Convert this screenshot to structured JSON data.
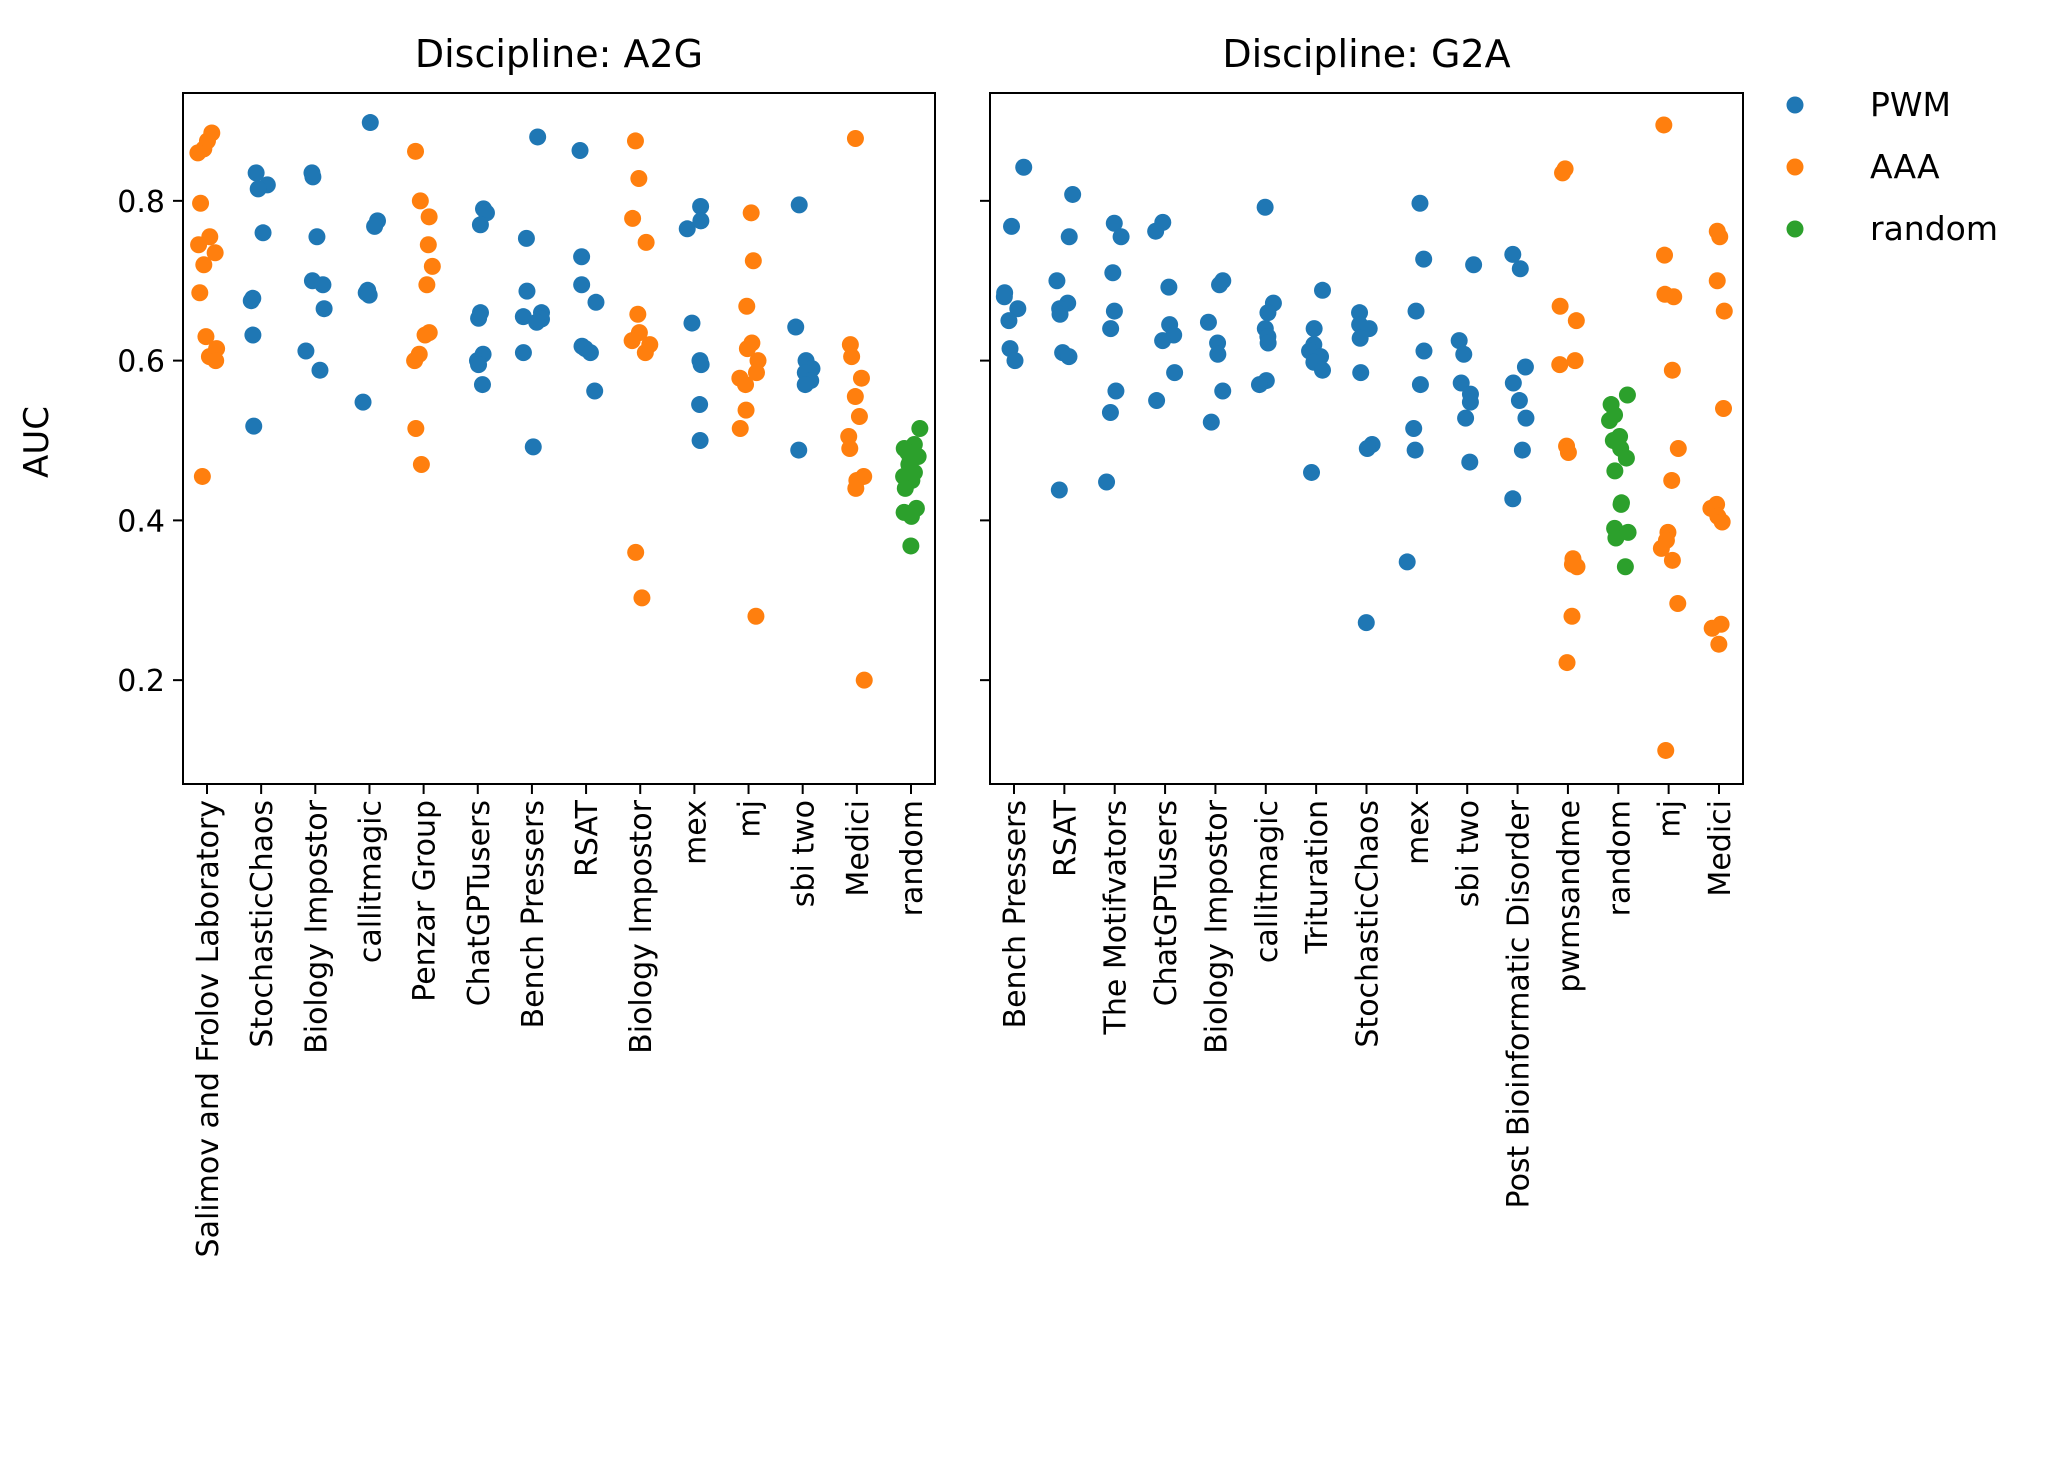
{
  "chart_data": {
    "type": "scatter",
    "ylabel": "AUC",
    "ylim": [
      0.07,
      0.935
    ],
    "yticks": [
      0.2,
      0.4,
      0.6,
      0.8
    ],
    "ytick_labels": [
      "0.2",
      "0.4",
      "0.6",
      "0.8"
    ],
    "legend": {
      "placement": "outside-top-right",
      "entries": [
        {
          "name": "PWM",
          "color": "#1f77b4"
        },
        {
          "name": "AAA",
          "color": "#ff7f0e"
        },
        {
          "name": "random",
          "color": "#2ca02c"
        }
      ]
    },
    "panels": [
      {
        "title": "Discipline: A2G",
        "categories": [
          {
            "label": "Salimov and Frolov Laboratory",
            "group": "AAA",
            "values": [
              0.885,
              0.875,
              0.865,
              0.86,
              0.797,
              0.755,
              0.745,
              0.735,
              0.72,
              0.685,
              0.63,
              0.615,
              0.605,
              0.6,
              0.455
            ]
          },
          {
            "label": "StochasticChaos",
            "group": "PWM",
            "values": [
              0.835,
              0.82,
              0.815,
              0.76,
              0.678,
              0.675,
              0.632,
              0.518
            ]
          },
          {
            "label": "Biology Impostor",
            "group": "PWM",
            "values": [
              0.835,
              0.83,
              0.755,
              0.7,
              0.695,
              0.665,
              0.612,
              0.588
            ]
          },
          {
            "label": "callitmagic",
            "group": "PWM",
            "values": [
              0.898,
              0.775,
              0.768,
              0.688,
              0.685,
              0.682,
              0.548
            ]
          },
          {
            "label": "Penzar Group",
            "group": "AAA",
            "values": [
              0.862,
              0.8,
              0.78,
              0.745,
              0.718,
              0.695,
              0.635,
              0.632,
              0.608,
              0.6,
              0.515,
              0.47
            ]
          },
          {
            "label": "ChatGPTusers",
            "group": "PWM",
            "values": [
              0.79,
              0.785,
              0.77,
              0.66,
              0.653,
              0.608,
              0.6,
              0.595,
              0.57
            ]
          },
          {
            "label": "Bench Pressers",
            "group": "PWM",
            "values": [
              0.88,
              0.753,
              0.687,
              0.66,
              0.655,
              0.652,
              0.648,
              0.61,
              0.492
            ]
          },
          {
            "label": "RSAT",
            "group": "PWM",
            "values": [
              0.863,
              0.73,
              0.695,
              0.673,
              0.618,
              0.615,
              0.61,
              0.562
            ]
          },
          {
            "label": "Biology Impostor",
            "group": "AAA",
            "values": [
              0.875,
              0.828,
              0.778,
              0.748,
              0.658,
              0.635,
              0.625,
              0.62,
              0.61,
              0.36,
              0.303
            ]
          },
          {
            "label": "mex",
            "group": "PWM",
            "values": [
              0.793,
              0.775,
              0.765,
              0.647,
              0.6,
              0.595,
              0.545,
              0.5
            ]
          },
          {
            "label": "mj",
            "group": "AAA",
            "values": [
              0.785,
              0.725,
              0.668,
              0.622,
              0.615,
              0.6,
              0.585,
              0.578,
              0.57,
              0.538,
              0.515,
              0.28
            ]
          },
          {
            "label": "sbi two",
            "group": "PWM",
            "values": [
              0.795,
              0.642,
              0.6,
              0.59,
              0.585,
              0.575,
              0.57,
              0.488
            ]
          },
          {
            "label": "Medici",
            "group": "AAA",
            "values": [
              0.878,
              0.62,
              0.605,
              0.578,
              0.555,
              0.53,
              0.505,
              0.49,
              0.455,
              0.45,
              0.44,
              0.2
            ]
          },
          {
            "label": "random",
            "group": "random",
            "values": [
              0.515,
              0.495,
              0.49,
              0.485,
              0.48,
              0.475,
              0.47,
              0.46,
              0.455,
              0.45,
              0.44,
              0.415,
              0.41,
              0.405,
              0.368
            ]
          }
        ]
      },
      {
        "title": "Discipline: G2A",
        "categories": [
          {
            "label": "Bench Pressers",
            "group": "PWM",
            "values": [
              0.842,
              0.768,
              0.685,
              0.68,
              0.665,
              0.65,
              0.615,
              0.6
            ]
          },
          {
            "label": "RSAT",
            "group": "PWM",
            "values": [
              0.808,
              0.755,
              0.7,
              0.672,
              0.665,
              0.658,
              0.61,
              0.605,
              0.438
            ]
          },
          {
            "label": "The Motifvators",
            "group": "PWM",
            "values": [
              0.772,
              0.755,
              0.71,
              0.662,
              0.64,
              0.562,
              0.535,
              0.448
            ]
          },
          {
            "label": "ChatGPTusers",
            "group": "PWM",
            "values": [
              0.773,
              0.762,
              0.692,
              0.645,
              0.632,
              0.625,
              0.585,
              0.55
            ]
          },
          {
            "label": "Biology Impostor",
            "group": "PWM",
            "values": [
              0.7,
              0.695,
              0.648,
              0.622,
              0.608,
              0.562,
              0.523
            ]
          },
          {
            "label": "callitmagic",
            "group": "PWM",
            "values": [
              0.792,
              0.672,
              0.66,
              0.64,
              0.63,
              0.622,
              0.575,
              0.57
            ]
          },
          {
            "label": "Trituration",
            "group": "PWM",
            "values": [
              0.688,
              0.64,
              0.62,
              0.612,
              0.605,
              0.598,
              0.588,
              0.46
            ]
          },
          {
            "label": "StochasticChaos",
            "group": "PWM",
            "values": [
              0.66,
              0.645,
              0.64,
              0.628,
              0.585,
              0.495,
              0.49,
              0.272
            ]
          },
          {
            "label": "mex",
            "group": "PWM",
            "values": [
              0.797,
              0.727,
              0.662,
              0.612,
              0.57,
              0.515,
              0.488,
              0.348
            ]
          },
          {
            "label": "sbi two",
            "group": "PWM",
            "values": [
              0.72,
              0.625,
              0.608,
              0.572,
              0.558,
              0.548,
              0.528,
              0.473
            ]
          },
          {
            "label": "Post Bioinformatic Disorder",
            "group": "PWM",
            "values": [
              0.733,
              0.715,
              0.592,
              0.572,
              0.55,
              0.528,
              0.488,
              0.427
            ]
          },
          {
            "label": "pwmsandme",
            "group": "AAA",
            "values": [
              0.84,
              0.835,
              0.668,
              0.65,
              0.6,
              0.595,
              0.493,
              0.485,
              0.352,
              0.345,
              0.342,
              0.28,
              0.222
            ]
          },
          {
            "label": "random",
            "group": "random",
            "values": [
              0.557,
              0.545,
              0.532,
              0.525,
              0.505,
              0.5,
              0.49,
              0.478,
              0.462,
              0.422,
              0.42,
              0.39,
              0.385,
              0.378,
              0.342
            ]
          },
          {
            "label": "mj",
            "group": "AAA",
            "values": [
              0.895,
              0.732,
              0.683,
              0.68,
              0.588,
              0.49,
              0.45,
              0.385,
              0.375,
              0.365,
              0.35,
              0.296,
              0.112
            ]
          },
          {
            "label": "Medici",
            "group": "AAA",
            "values": [
              0.762,
              0.755,
              0.7,
              0.662,
              0.54,
              0.42,
              0.415,
              0.405,
              0.398,
              0.27,
              0.265,
              0.245
            ]
          }
        ]
      }
    ]
  }
}
